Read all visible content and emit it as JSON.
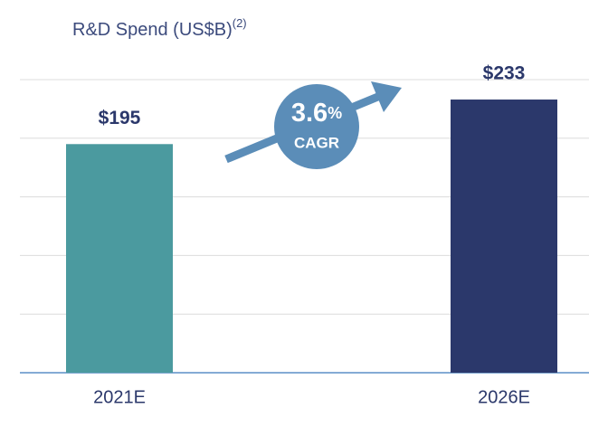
{
  "chart_data": {
    "type": "bar",
    "title": "R&D Spend (US$B)",
    "title_note": "(2)",
    "categories": [
      "2021E",
      "2026E"
    ],
    "values": [
      195,
      233
    ],
    "value_labels": [
      "$195",
      "$233"
    ],
    "colors": [
      "#4b9a9f",
      "#2b386b"
    ],
    "ylim": [
      0,
      250
    ],
    "yticks": [
      0,
      50,
      100,
      150,
      200,
      250
    ],
    "grid": true,
    "annotation": {
      "value": "3.6",
      "unit": "%",
      "label": "CAGR",
      "color": "#5b8db8"
    }
  }
}
